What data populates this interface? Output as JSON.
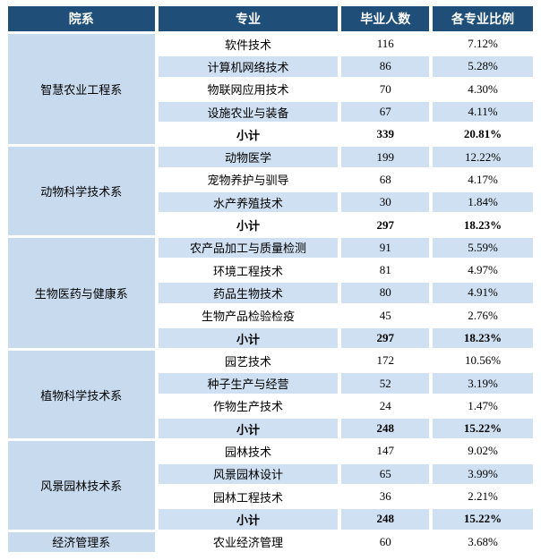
{
  "table": {
    "headers": [
      "院系",
      "专业",
      "毕业人数",
      "各专业比例"
    ],
    "subtotal_label": "小计",
    "sections": [
      {
        "department": "智慧农业工程系",
        "rows": [
          [
            "软件技术",
            "116",
            "7.12%"
          ],
          [
            "计算机网络技术",
            "86",
            "5.28%"
          ],
          [
            "物联网应用技术",
            "70",
            "4.30%"
          ],
          [
            "设施农业与装备",
            "67",
            "4.11%"
          ]
        ],
        "subtotal": [
          "339",
          "20.81%"
        ]
      },
      {
        "department": "动物科学技术系",
        "rows": [
          [
            "动物医学",
            "199",
            "12.22%"
          ],
          [
            "宠物养护与驯导",
            "68",
            "4.17%"
          ],
          [
            "水产养殖技术",
            "30",
            "1.84%"
          ]
        ],
        "subtotal": [
          "297",
          "18.23%"
        ]
      },
      {
        "department": "生物医药与健康系",
        "rows": [
          [
            "农产品加工与质量检测",
            "91",
            "5.59%"
          ],
          [
            "环境工程技术",
            "81",
            "4.97%"
          ],
          [
            "药品生物技术",
            "80",
            "4.91%"
          ],
          [
            "生物产品检验检疫",
            "45",
            "2.76%"
          ]
        ],
        "subtotal": [
          "297",
          "18.23%"
        ]
      },
      {
        "department": "植物科学技术系",
        "rows": [
          [
            "园艺技术",
            "172",
            "10.56%"
          ],
          [
            "种子生产与经营",
            "52",
            "3.19%"
          ],
          [
            "作物生产技术",
            "24",
            "1.47%"
          ]
        ],
        "subtotal": [
          "248",
          "15.22%"
        ]
      },
      {
        "department": "风景园林技术系",
        "rows": [
          [
            "园林技术",
            "147",
            "9.02%"
          ],
          [
            "风景园林设计",
            "65",
            "3.99%"
          ],
          [
            "园林工程技术",
            "36",
            "2.21%"
          ]
        ],
        "subtotal": [
          "248",
          "15.22%"
        ]
      },
      {
        "department": "经济管理系",
        "rows": [
          [
            "农业经济管理",
            "60",
            "3.68%"
          ]
        ],
        "subtotal": null
      }
    ],
    "colors": {
      "header_bg": "#1f4e79",
      "header_text": "#ffffff",
      "stripe_bg": "#cfe0f2",
      "department_bg": "#c7daee",
      "body_text": "#000000"
    }
  }
}
